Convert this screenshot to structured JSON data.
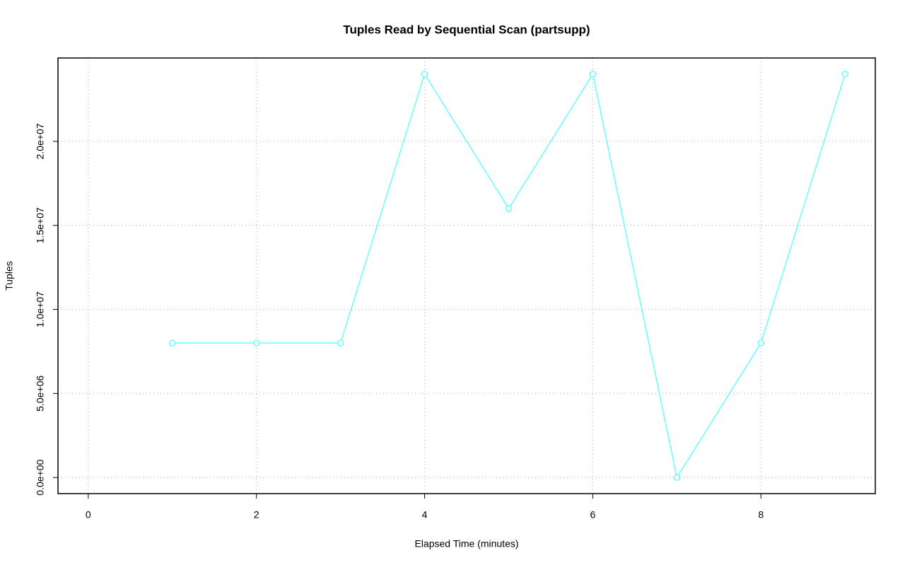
{
  "chart_data": {
    "type": "line",
    "title": "Tuples Read by Sequential Scan (partsupp)",
    "x_label": "Elapsed Time (minutes)",
    "y_label": "Tuples",
    "x": [
      1,
      2,
      3,
      4,
      5,
      6,
      7,
      8,
      9
    ],
    "series": [
      {
        "name": "partsupp",
        "color": "#66ffff",
        "values": [
          8000000,
          8000000,
          8000000,
          24000000,
          16000000,
          24000000,
          0,
          8000000,
          24000000
        ]
      }
    ],
    "xlim": [
      -0.36,
      9.36
    ],
    "ylim": [
      -960000,
      24960000
    ],
    "xticks": [
      0,
      2,
      4,
      6,
      8
    ],
    "yticks": [
      {
        "value": 0,
        "label": "0.0e+00"
      },
      {
        "value": 5000000,
        "label": "5.0e+06"
      },
      {
        "value": 10000000,
        "label": "1.0e+07"
      },
      {
        "value": 15000000,
        "label": "1.5e+07"
      },
      {
        "value": 20000000,
        "label": "2.0e+07"
      }
    ],
    "grid": true
  }
}
